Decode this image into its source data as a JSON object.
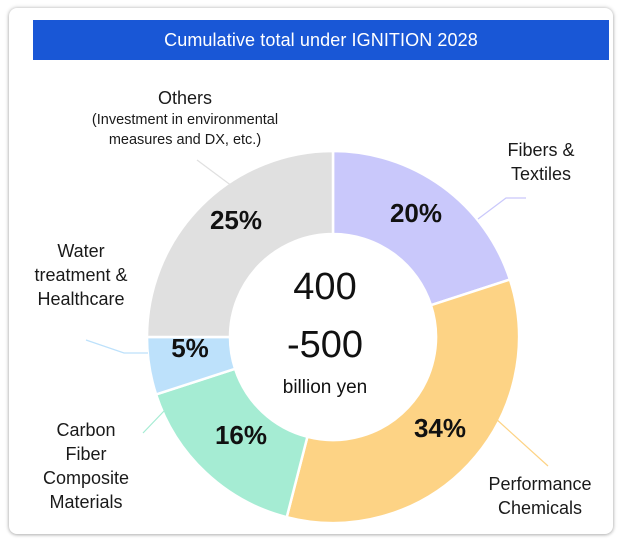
{
  "chart_data": {
    "type": "pie",
    "title": "Cumulative total under IGNITION 2028",
    "center_value_top": "400",
    "center_value_bottom": "-500",
    "center_unit": "billion yen",
    "slices": [
      {
        "label": "Fibers & Textiles",
        "value": 20,
        "value_label": "20%",
        "color": "#c9c8fb"
      },
      {
        "label": "Performance Chemicals",
        "value": 34,
        "value_label": "34%",
        "color": "#fdd385"
      },
      {
        "label": "Carbon Fiber Composite Materials",
        "value": 16,
        "value_label": "16%",
        "color": "#a5ecd3"
      },
      {
        "label": "Water treatment & Healthcare",
        "value": 5,
        "value_label": "5%",
        "color": "#bde1fb"
      },
      {
        "label": "Others",
        "sublabel": "(Investment in environmental measures and DX, etc.)",
        "value": 25,
        "value_label": "25%",
        "color": "#e0e0e0"
      }
    ]
  }
}
